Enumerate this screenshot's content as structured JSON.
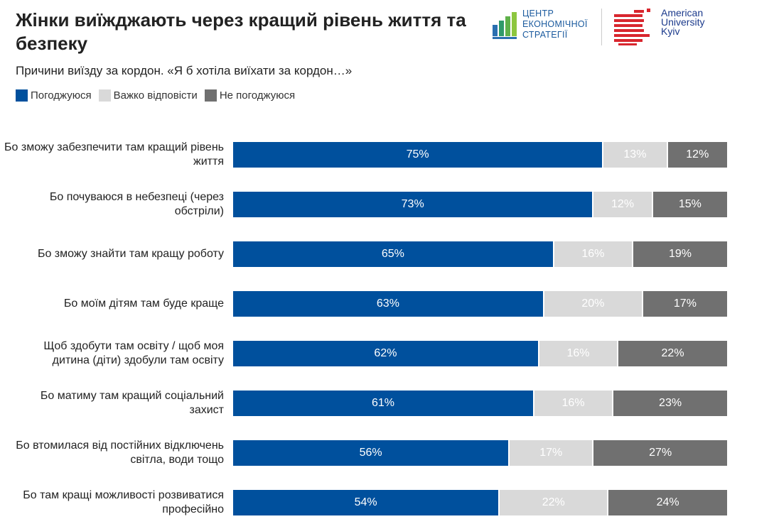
{
  "header": {
    "title": "Жінки виїжджають через кращий рівень життя та безпеку",
    "subtitle": "Причини виїзду за кордон. «Я б хотіла виїхати за кордон…»",
    "logo_ces": [
      "ЦЕНТР",
      "ЕКОНОМІЧНОЇ",
      "СТРАТЕГІЇ"
    ],
    "logo_auk": [
      "American",
      "University",
      "Kyiv"
    ]
  },
  "colors": {
    "agree": "#00509d",
    "hard": "#d9d9d9",
    "disagree": "#707070"
  },
  "chart_data": {
    "type": "bar",
    "orientation": "horizontal-stacked-100",
    "title": "Жінки виїжджають через кращий рівень життя та безпеку",
    "legend_position": "top-left",
    "categories": [
      "Бо зможу забезпечити там кращий рівень життя",
      "Бо почуваюся в небезпеці (через обстріли)",
      "Бо зможу знайти там кращу роботу",
      "Бо моїм дітям там буде краще",
      "Щоб здобути там освіту / щоб моя дитина (діти) здобули там освіту",
      "Бо матиму там кращий соціальний захист",
      "Бо втомилася від постійних відключень світла, води тощо",
      "Бо там кращі можливості розвиватися професійно"
    ],
    "series": [
      {
        "name": "Погоджуюся",
        "values": [
          75,
          73,
          65,
          63,
          62,
          61,
          56,
          54
        ]
      },
      {
        "name": "Важко відповісти",
        "values": [
          13,
          12,
          16,
          20,
          16,
          16,
          17,
          22
        ]
      },
      {
        "name": "Не погоджуюся",
        "values": [
          12,
          15,
          19,
          17,
          22,
          23,
          27,
          24
        ]
      }
    ],
    "value_suffix": "%"
  }
}
